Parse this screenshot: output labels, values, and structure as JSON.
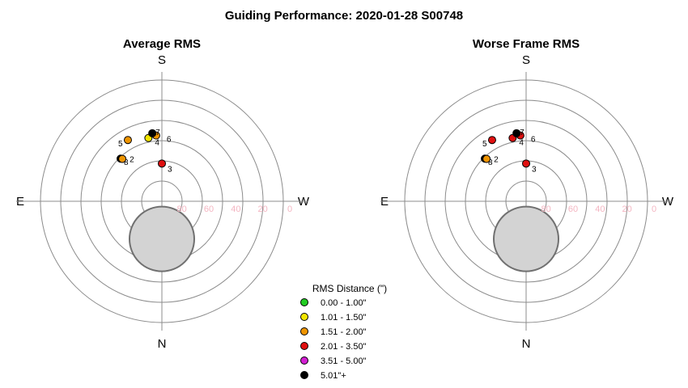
{
  "title": "Guiding Performance: 2020-01-28 S00748",
  "legend": {
    "title": "RMS Distance (\")",
    "items": [
      {
        "label": "0.00 - 1.00\"",
        "color": "#22cc22"
      },
      {
        "label": "1.01 - 1.50\"",
        "color": "#f2e600"
      },
      {
        "label": "1.51 - 2.00\"",
        "color": "#ee9400"
      },
      {
        "label": "2.01 - 3.50\"",
        "color": "#e01010"
      },
      {
        "label": "3.51 - 5.00\"",
        "color": "#d21fd2"
      },
      {
        "label": "5.01\"+",
        "color": "#000000"
      }
    ]
  },
  "compass": {
    "top": "S",
    "bottom": "N",
    "left": "E",
    "right": "W"
  },
  "chart_data": [
    {
      "type": "scatter",
      "projection": "polar-altaz",
      "title": "Average RMS",
      "radial_ticks": [
        "80",
        "60",
        "40",
        "20",
        "0"
      ],
      "altitude_rings": [
        90,
        75,
        60,
        45,
        30,
        15,
        0
      ],
      "obstruction": {
        "azimuth": 0,
        "altitude": 62,
        "radius_deg": 24,
        "color": "#d3d3d3"
      },
      "points": [
        {
          "label": "3",
          "azimuth": 180,
          "altitude": 62,
          "color": "#e01010"
        },
        {
          "label": "8",
          "azimuth": 136,
          "altitude": 46,
          "color": "#000000"
        },
        {
          "label": "2",
          "azimuth": 137,
          "altitude": 47,
          "color": "#ee9400"
        },
        {
          "label": "5",
          "azimuth": 151,
          "altitude": 38,
          "color": "#ee9400"
        },
        {
          "label": "4",
          "azimuth": 168,
          "altitude": 42,
          "color": "#f2e600"
        },
        {
          "label": "6",
          "azimuth": 175,
          "altitude": 41,
          "color": "#ee9400"
        },
        {
          "label": "7",
          "azimuth": 172,
          "altitude": 39,
          "color": "#000000"
        }
      ]
    },
    {
      "type": "scatter",
      "projection": "polar-altaz",
      "title": "Worse Frame RMS",
      "radial_ticks": [
        "80",
        "60",
        "40",
        "20",
        "0"
      ],
      "altitude_rings": [
        90,
        75,
        60,
        45,
        30,
        15,
        0
      ],
      "obstruction": {
        "azimuth": 0,
        "altitude": 62,
        "radius_deg": 24,
        "color": "#d3d3d3"
      },
      "points": [
        {
          "label": "3",
          "azimuth": 180,
          "altitude": 62,
          "color": "#e01010"
        },
        {
          "label": "8",
          "azimuth": 136,
          "altitude": 46,
          "color": "#000000"
        },
        {
          "label": "2",
          "azimuth": 137,
          "altitude": 47,
          "color": "#ee9400"
        },
        {
          "label": "5",
          "azimuth": 151,
          "altitude": 38,
          "color": "#e01010"
        },
        {
          "label": "4",
          "azimuth": 168,
          "altitude": 42,
          "color": "#e01010"
        },
        {
          "label": "6",
          "azimuth": 175,
          "altitude": 41,
          "color": "#e01010"
        },
        {
          "label": "7",
          "azimuth": 172,
          "altitude": 39,
          "color": "#000000"
        }
      ]
    }
  ]
}
